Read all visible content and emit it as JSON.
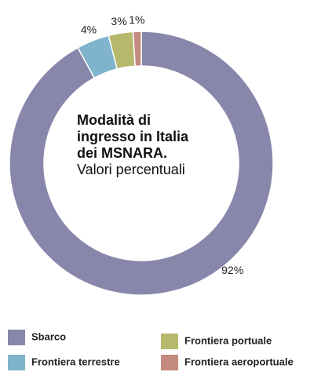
{
  "chart_data": {
    "type": "donut",
    "title": "Modalità di ingresso in Italia dei MSNARA.",
    "subtitle": "Valori percentuali",
    "categories": [
      "Sbarco",
      "Frontiera terrestre",
      "Frontiera portuale",
      "Frontiera aeroportuale"
    ],
    "values": [
      92,
      4,
      3,
      1
    ],
    "value_labels": [
      "92%",
      "4%",
      "3%",
      "1%"
    ],
    "colors": [
      "#8886aa",
      "#7fb4cc",
      "#b6b86c",
      "#c48a80"
    ],
    "legend": "bottom"
  }
}
